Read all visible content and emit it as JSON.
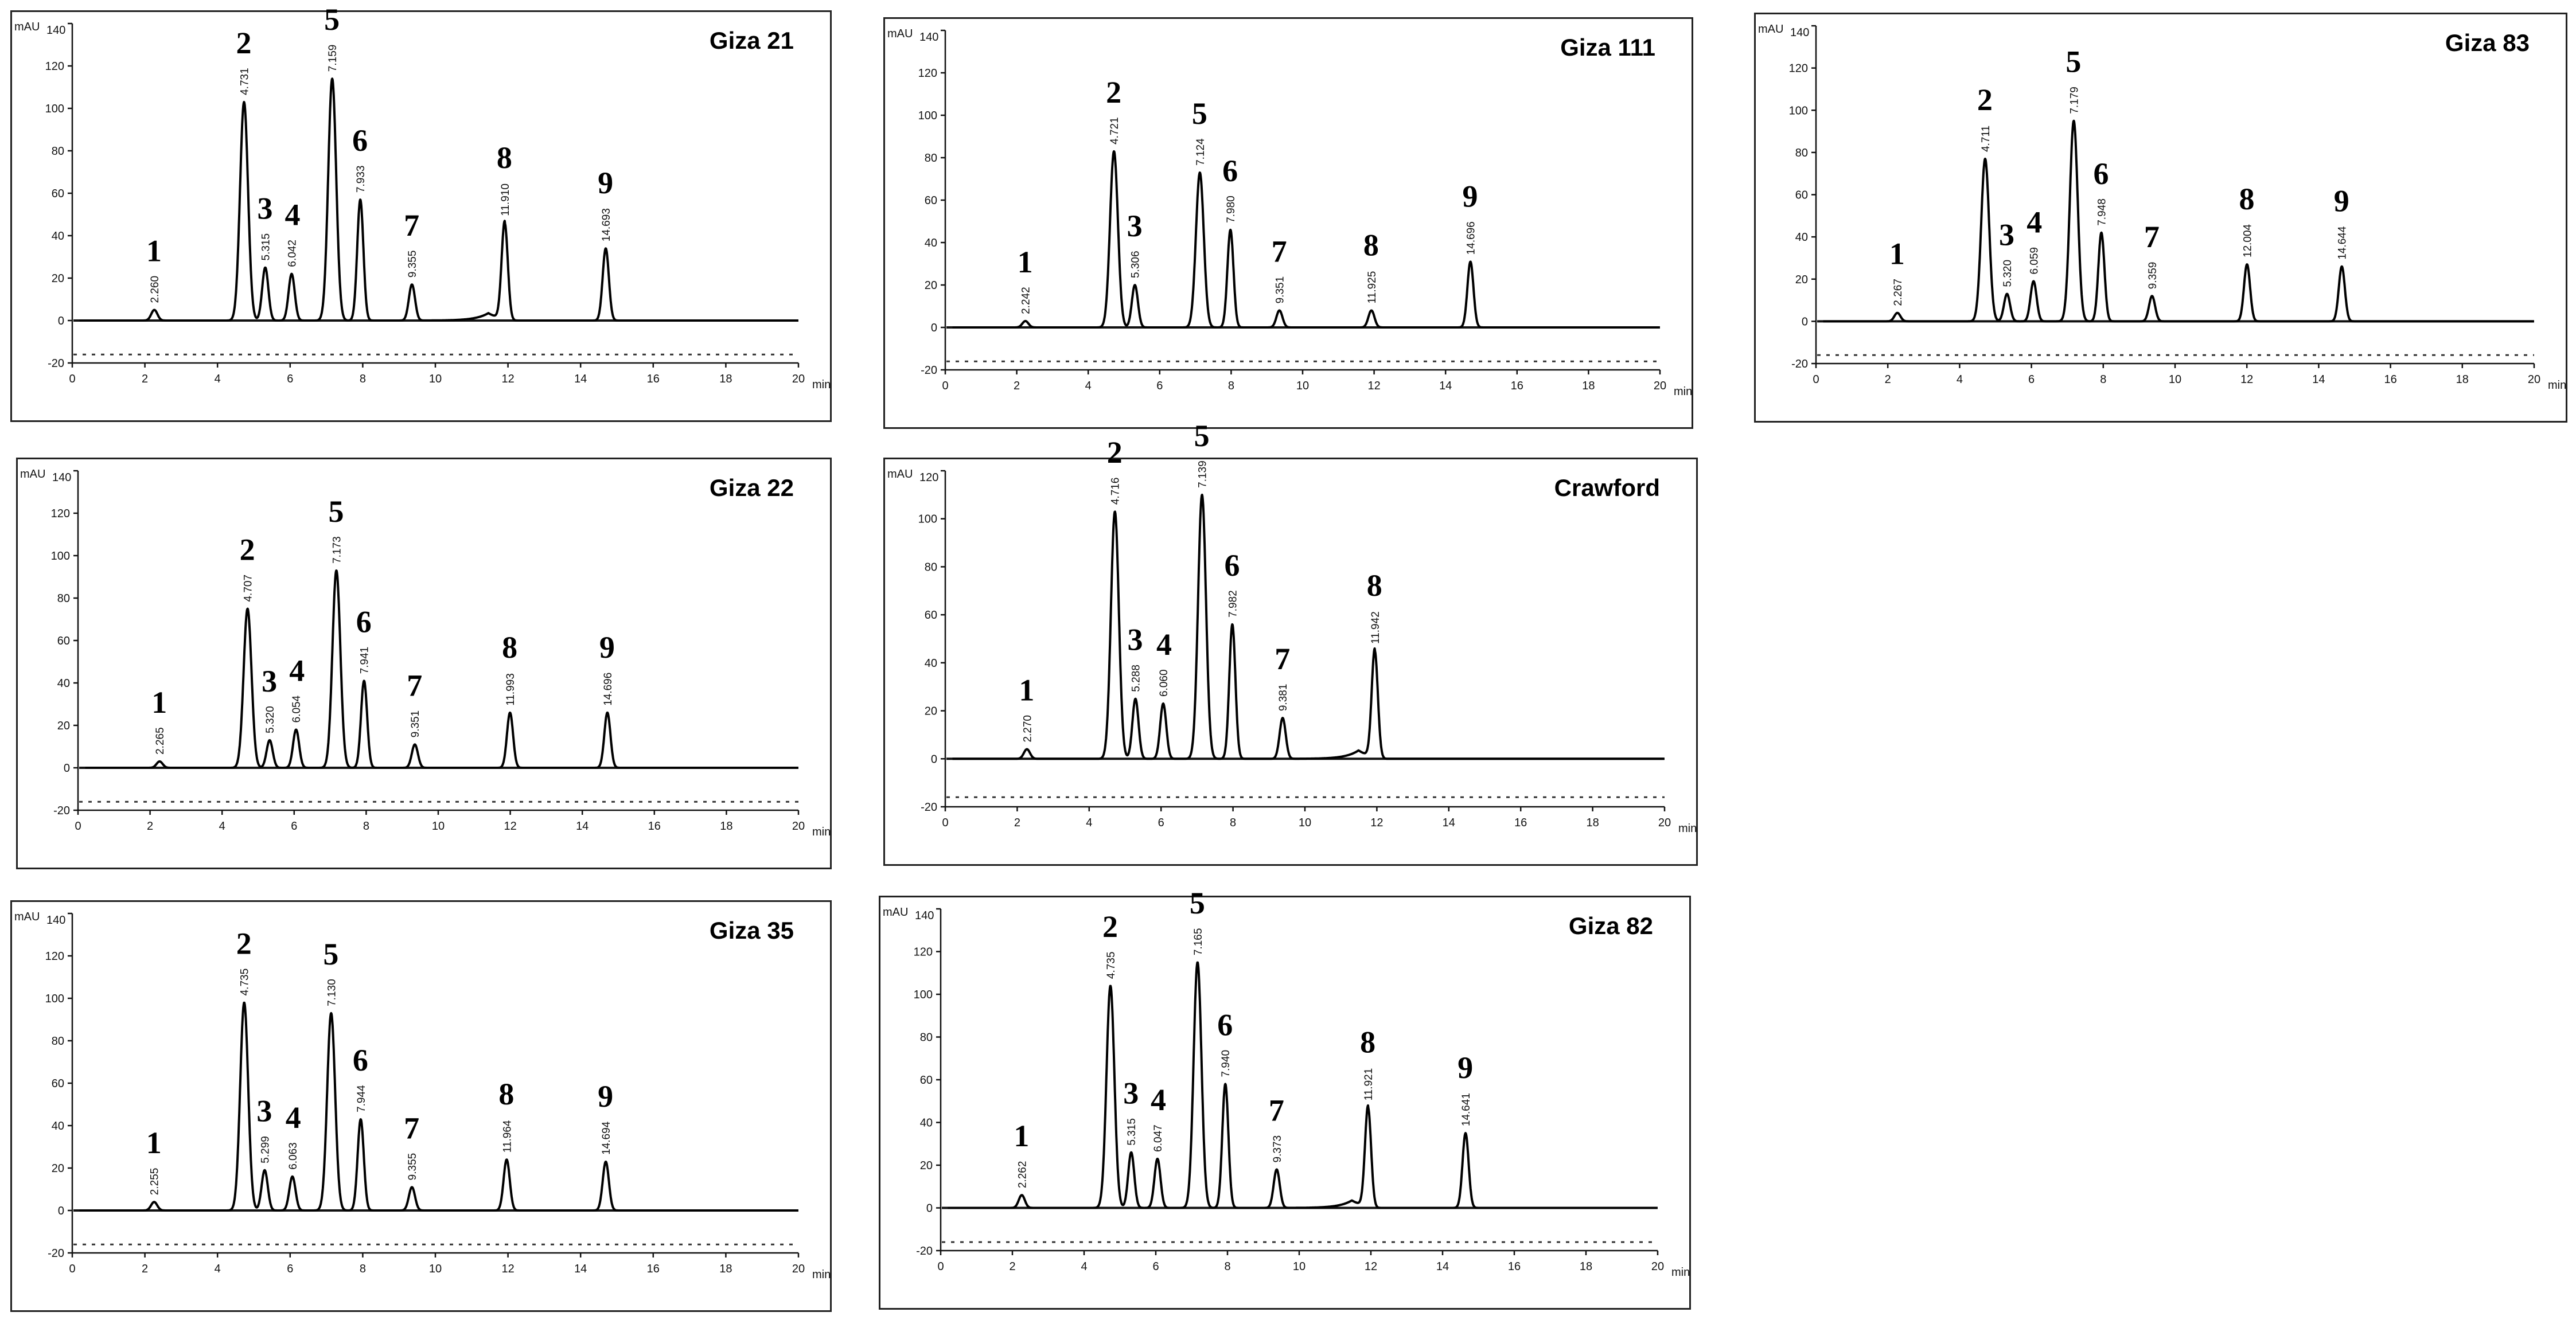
{
  "figure": {
    "y_unit": "mAU",
    "x_unit": "min"
  },
  "chart_data": [
    {
      "type": "line",
      "title": "Giza 21",
      "xlabel": "min",
      "ylabel": "mAU",
      "xlim": [
        0,
        20
      ],
      "ylim": [
        -20,
        140
      ],
      "x_ticks": [
        0,
        2,
        4,
        6,
        8,
        10,
        12,
        14,
        16,
        18,
        20
      ],
      "y_ticks": [
        -20,
        0,
        20,
        40,
        60,
        80,
        100,
        120,
        140
      ],
      "peaks": [
        {
          "label": "1",
          "rt": 2.26,
          "rt_label": "2.260",
          "height": 5
        },
        {
          "label": "2",
          "rt": 4.731,
          "rt_label": "4.731",
          "height": 103
        },
        {
          "label": "3",
          "rt": 5.315,
          "rt_label": "5.315",
          "height": 25
        },
        {
          "label": "4",
          "rt": 6.042,
          "rt_label": "6.042",
          "height": 22
        },
        {
          "label": "5",
          "rt": 7.159,
          "rt_label": "7.159",
          "height": 114
        },
        {
          "label": "6",
          "rt": 7.933,
          "rt_label": "7.933",
          "height": 57
        },
        {
          "label": "7",
          "rt": 9.355,
          "rt_label": "9.355",
          "height": 17
        },
        {
          "label": "8",
          "rt": 11.91,
          "rt_label": "11.910",
          "height": 46
        },
        {
          "label": "9",
          "rt": 14.693,
          "rt_label": "14.693",
          "height": 34
        }
      ]
    },
    {
      "type": "line",
      "title": "Giza 111",
      "xlabel": "min",
      "ylabel": "mAU",
      "xlim": [
        0,
        20
      ],
      "ylim": [
        -20,
        140
      ],
      "x_ticks": [
        0,
        2,
        4,
        6,
        8,
        10,
        12,
        14,
        16,
        18,
        20
      ],
      "y_ticks": [
        -20,
        0,
        20,
        40,
        60,
        80,
        100,
        120,
        140
      ],
      "peaks": [
        {
          "label": "1",
          "rt": 2.242,
          "rt_label": "2.242",
          "height": 3
        },
        {
          "label": "2",
          "rt": 4.721,
          "rt_label": "4.721",
          "height": 83
        },
        {
          "label": "3",
          "rt": 5.306,
          "rt_label": "5.306",
          "height": 20
        },
        {
          "label": "5",
          "rt": 7.124,
          "rt_label": "7.124",
          "height": 73
        },
        {
          "label": "6",
          "rt": 7.98,
          "rt_label": "7.980",
          "height": 46
        },
        {
          "label": "7",
          "rt": 9.351,
          "rt_label": "9.351",
          "height": 8
        },
        {
          "label": "8",
          "rt": 11.925,
          "rt_label": "11.925",
          "height": 8
        },
        {
          "label": "9",
          "rt": 14.696,
          "rt_label": "14.696",
          "height": 31
        }
      ]
    },
    {
      "type": "line",
      "title": "Giza 83",
      "xlabel": "min",
      "ylabel": "mAU",
      "xlim": [
        0,
        20
      ],
      "ylim": [
        -20,
        140
      ],
      "x_ticks": [
        0,
        2,
        4,
        6,
        8,
        10,
        12,
        14,
        16,
        18,
        20
      ],
      "y_ticks": [
        -20,
        0,
        20,
        40,
        60,
        80,
        100,
        120,
        140
      ],
      "peaks": [
        {
          "label": "1",
          "rt": 2.267,
          "rt_label": "2.267",
          "height": 4
        },
        {
          "label": "2",
          "rt": 4.711,
          "rt_label": "4.711",
          "height": 77
        },
        {
          "label": "3",
          "rt": 5.32,
          "rt_label": "5.320",
          "height": 13
        },
        {
          "label": "4",
          "rt": 6.059,
          "rt_label": "6.059",
          "height": 19
        },
        {
          "label": "5",
          "rt": 7.179,
          "rt_label": "7.179",
          "height": 95
        },
        {
          "label": "6",
          "rt": 7.948,
          "rt_label": "7.948",
          "height": 42
        },
        {
          "label": "7",
          "rt": 9.359,
          "rt_label": "9.359",
          "height": 12
        },
        {
          "label": "8",
          "rt": 12.004,
          "rt_label": "12.004",
          "height": 27
        },
        {
          "label": "9",
          "rt": 14.644,
          "rt_label": "14.644",
          "height": 26
        }
      ]
    },
    {
      "type": "line",
      "title": "Giza 22",
      "xlabel": "min",
      "ylabel": "mAU",
      "xlim": [
        0,
        20
      ],
      "ylim": [
        -20,
        140
      ],
      "x_ticks": [
        0,
        2,
        4,
        6,
        8,
        10,
        12,
        14,
        16,
        18,
        20
      ],
      "y_ticks": [
        -20,
        0,
        20,
        40,
        60,
        80,
        100,
        120,
        140
      ],
      "peaks": [
        {
          "label": "1",
          "rt": 2.265,
          "rt_label": "2.265",
          "height": 3
        },
        {
          "label": "2",
          "rt": 4.707,
          "rt_label": "4.707",
          "height": 75
        },
        {
          "label": "3",
          "rt": 5.32,
          "rt_label": "5.320",
          "height": 13
        },
        {
          "label": "4",
          "rt": 6.054,
          "rt_label": "6.054",
          "height": 18
        },
        {
          "label": "5",
          "rt": 7.173,
          "rt_label": "7.173",
          "height": 93
        },
        {
          "label": "6",
          "rt": 7.941,
          "rt_label": "7.941",
          "height": 41
        },
        {
          "label": "7",
          "rt": 9.351,
          "rt_label": "9.351",
          "height": 11
        },
        {
          "label": "8",
          "rt": 11.993,
          "rt_label": "11.993",
          "height": 26
        },
        {
          "label": "9",
          "rt": 14.696,
          "rt_label": "14.696",
          "height": 26
        }
      ]
    },
    {
      "type": "line",
      "title": "Crawford",
      "xlabel": "min",
      "ylabel": "mAU",
      "xlim": [
        0,
        20
      ],
      "ylim": [
        -20,
        120
      ],
      "x_ticks": [
        0,
        2,
        4,
        6,
        8,
        10,
        12,
        14,
        16,
        18,
        20
      ],
      "y_ticks": [
        -20,
        0,
        20,
        40,
        60,
        80,
        100,
        120
      ],
      "peaks": [
        {
          "label": "1",
          "rt": 2.27,
          "rt_label": "2.270",
          "height": 4
        },
        {
          "label": "2",
          "rt": 4.716,
          "rt_label": "4.716",
          "height": 103
        },
        {
          "label": "3",
          "rt": 5.288,
          "rt_label": "5.288",
          "height": 25
        },
        {
          "label": "4",
          "rt": 6.06,
          "rt_label": "6.060",
          "height": 23
        },
        {
          "label": "5",
          "rt": 7.139,
          "rt_label": "7.139",
          "height": 110
        },
        {
          "label": "6",
          "rt": 7.982,
          "rt_label": "7.982",
          "height": 56
        },
        {
          "label": "7",
          "rt": 9.381,
          "rt_label": "9.381",
          "height": 17
        },
        {
          "label": "8",
          "rt": 11.942,
          "rt_label": "11.942",
          "height": 45
        }
      ]
    },
    {
      "type": "line",
      "title": "Giza 35",
      "xlabel": "min",
      "ylabel": "mAU",
      "xlim": [
        0,
        20
      ],
      "ylim": [
        -20,
        140
      ],
      "x_ticks": [
        0,
        2,
        4,
        6,
        8,
        10,
        12,
        14,
        16,
        18,
        20
      ],
      "y_ticks": [
        -20,
        0,
        20,
        40,
        60,
        80,
        100,
        120,
        140
      ],
      "peaks": [
        {
          "label": "1",
          "rt": 2.255,
          "rt_label": "2.255",
          "height": 4
        },
        {
          "label": "2",
          "rt": 4.735,
          "rt_label": "4.735",
          "height": 98
        },
        {
          "label": "3",
          "rt": 5.299,
          "rt_label": "5.299",
          "height": 19
        },
        {
          "label": "4",
          "rt": 6.063,
          "rt_label": "6.063",
          "height": 16
        },
        {
          "label": "5",
          "rt": 7.13,
          "rt_label": "7.130",
          "height": 93
        },
        {
          "label": "6",
          "rt": 7.944,
          "rt_label": "7.944",
          "height": 43
        },
        {
          "label": "7",
          "rt": 9.355,
          "rt_label": "9.355",
          "height": 11
        },
        {
          "label": "8",
          "rt": 11.964,
          "rt_label": "11.964",
          "height": 24
        },
        {
          "label": "9",
          "rt": 14.694,
          "rt_label": "14.694",
          "height": 23
        }
      ]
    },
    {
      "type": "line",
      "title": "Giza 82",
      "xlabel": "min",
      "ylabel": "mAU",
      "xlim": [
        0,
        20
      ],
      "ylim": [
        -20,
        140
      ],
      "x_ticks": [
        0,
        2,
        4,
        6,
        8,
        10,
        12,
        14,
        16,
        18,
        20
      ],
      "y_ticks": [
        -20,
        0,
        20,
        40,
        60,
        80,
        100,
        120,
        140
      ],
      "peaks": [
        {
          "label": "1",
          "rt": 2.262,
          "rt_label": "2.262",
          "height": 6
        },
        {
          "label": "2",
          "rt": 4.735,
          "rt_label": "4.735",
          "height": 104
        },
        {
          "label": "3",
          "rt": 5.315,
          "rt_label": "5.315",
          "height": 26
        },
        {
          "label": "4",
          "rt": 6.047,
          "rt_label": "6.047",
          "height": 23
        },
        {
          "label": "5",
          "rt": 7.165,
          "rt_label": "7.165",
          "height": 115
        },
        {
          "label": "6",
          "rt": 7.94,
          "rt_label": "7.940",
          "height": 58
        },
        {
          "label": "7",
          "rt": 9.373,
          "rt_label": "9.373",
          "height": 18
        },
        {
          "label": "8",
          "rt": 11.921,
          "rt_label": "11.921",
          "height": 47
        },
        {
          "label": "9",
          "rt": 14.641,
          "rt_label": "14.641",
          "height": 35
        }
      ]
    }
  ]
}
